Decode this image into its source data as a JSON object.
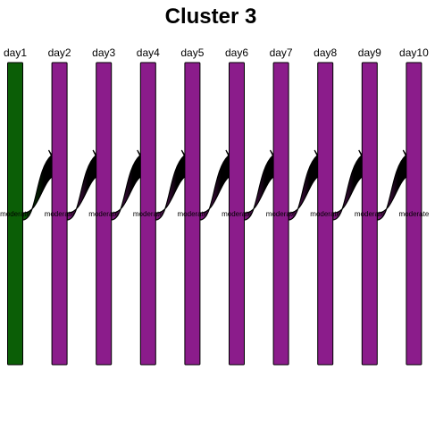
{
  "title": "Cluster 3",
  "colors": {
    "first_bar": "#0b5e06",
    "bar": "#8b1c8b",
    "stroke": "#000000",
    "ribbon": "#000000"
  },
  "columns": [
    {
      "day": "day1",
      "label": "moderate"
    },
    {
      "day": "day2",
      "label": "moderate"
    },
    {
      "day": "day3",
      "label": "moderate"
    },
    {
      "day": "day4",
      "label": "moderate"
    },
    {
      "day": "day5",
      "label": "moderate"
    },
    {
      "day": "day6",
      "label": "moderate"
    },
    {
      "day": "day7",
      "label": "moderate"
    },
    {
      "day": "day8",
      "label": "moderate"
    },
    {
      "day": "day9",
      "label": "moderate"
    },
    {
      "day": "day10",
      "label": "moderate"
    }
  ]
}
